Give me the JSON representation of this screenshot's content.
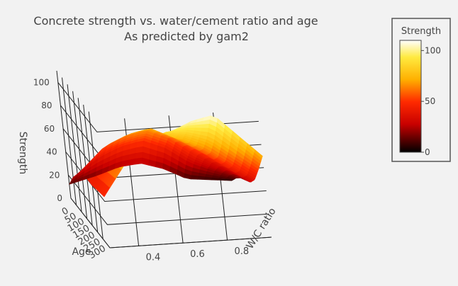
{
  "chart": {
    "title_line1": "Concrete strength vs. water/cement ratio and age",
    "title_line2": "As predicted by gam2"
  },
  "colors": {
    "background": "#f2f2f2",
    "text": "#444444",
    "axis_line": "#222222",
    "colorbar_border": "#555555"
  },
  "chart_data": {
    "type": "surface3d",
    "title": "Concrete strength vs. water/cement ratio and age\nAs predicted by gam2",
    "xlabel": "Age",
    "ylabel": "W/C ratio",
    "zlabel": "Strength",
    "x_ticks": [
      0,
      50,
      100,
      150,
      200,
      250,
      300
    ],
    "y_ticks": [
      0.4,
      0.6,
      0.8
    ],
    "z_ticks": [
      0,
      20,
      40,
      60,
      80,
      100
    ],
    "xlim": [
      0,
      365
    ],
    "ylim": [
      0.27,
      1.0
    ],
    "zlim": [
      0,
      110
    ],
    "age_values": [
      0,
      50,
      100,
      150,
      200,
      250,
      300,
      365
    ],
    "wc_values": [
      0.27,
      0.4,
      0.5,
      0.6,
      0.7,
      0.8,
      1.0
    ],
    "strength_grid": [
      [
        12,
        24,
        32,
        38,
        40,
        40,
        42,
        44
      ],
      [
        18,
        40,
        54,
        62,
        66,
        68,
        72,
        76
      ],
      [
        24,
        48,
        62,
        70,
        72,
        74,
        80,
        86
      ],
      [
        26,
        52,
        66,
        74,
        76,
        80,
        88,
        96
      ],
      [
        20,
        44,
        58,
        64,
        68,
        74,
        86,
        104
      ],
      [
        10,
        30,
        44,
        52,
        56,
        64,
        80,
        108
      ],
      [
        6,
        14,
        20,
        24,
        28,
        36,
        50,
        70
      ]
    ],
    "colorscale": "hot",
    "colorbar": {
      "title": "Strength",
      "ticks": [
        0,
        50,
        100
      ],
      "range": [
        0,
        110
      ]
    }
  }
}
